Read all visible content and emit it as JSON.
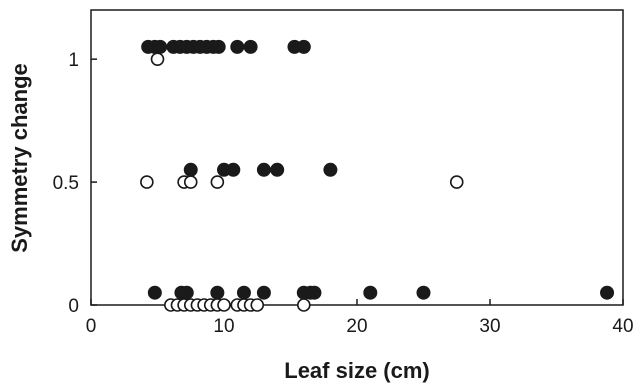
{
  "chart_data": {
    "type": "scatter",
    "xlabel": "Leaf size (cm)",
    "ylabel": "Symmetry change",
    "xlim": [
      0,
      40
    ],
    "ylim": [
      0,
      1.2
    ],
    "xticks": [
      0,
      10,
      20,
      30,
      40
    ],
    "xtick_labels": [
      "0",
      "10",
      "20",
      "30",
      "40"
    ],
    "yticks": [
      0,
      0.5,
      1
    ],
    "ytick_labels": [
      "0",
      "0.5",
      "1"
    ],
    "grid": false,
    "legend": "none",
    "series": [
      {
        "marker": "filled-circle",
        "color": "#1a1a1a",
        "points": [
          [
            4.3,
            1.05
          ],
          [
            4.8,
            1.05
          ],
          [
            5.2,
            1.05
          ],
          [
            6.2,
            1.05
          ],
          [
            6.7,
            1.05
          ],
          [
            7.2,
            1.05
          ],
          [
            7.7,
            1.05
          ],
          [
            8.2,
            1.05
          ],
          [
            8.7,
            1.05
          ],
          [
            9.2,
            1.05
          ],
          [
            9.6,
            1.05
          ],
          [
            11.0,
            1.05
          ],
          [
            12.0,
            1.05
          ],
          [
            15.3,
            1.05
          ],
          [
            16.0,
            1.05
          ],
          [
            7.5,
            0.55
          ],
          [
            10.0,
            0.55
          ],
          [
            10.7,
            0.55
          ],
          [
            13.0,
            0.55
          ],
          [
            14.0,
            0.55
          ],
          [
            18.0,
            0.55
          ],
          [
            4.8,
            0.05
          ],
          [
            6.8,
            0.05
          ],
          [
            7.2,
            0.05
          ],
          [
            9.5,
            0.05
          ],
          [
            11.5,
            0.05
          ],
          [
            13.0,
            0.05
          ],
          [
            16.0,
            0.05
          ],
          [
            16.5,
            0.05
          ],
          [
            16.8,
            0.05
          ],
          [
            21.0,
            0.05
          ],
          [
            25.0,
            0.05
          ],
          [
            38.8,
            0.05
          ]
        ]
      },
      {
        "marker": "open-circle",
        "color": "#1a1a1a",
        "points": [
          [
            5.0,
            1.0
          ],
          [
            4.2,
            0.5
          ],
          [
            7.0,
            0.5
          ],
          [
            7.5,
            0.5
          ],
          [
            9.5,
            0.5
          ],
          [
            27.5,
            0.5
          ],
          [
            6.0,
            0.0
          ],
          [
            6.5,
            0.0
          ],
          [
            7.0,
            0.0
          ],
          [
            7.5,
            0.0
          ],
          [
            8.0,
            0.0
          ],
          [
            8.5,
            0.0
          ],
          [
            9.0,
            0.0
          ],
          [
            9.5,
            0.0
          ],
          [
            10.0,
            0.0
          ],
          [
            11.0,
            0.0
          ],
          [
            11.5,
            0.0
          ],
          [
            12.0,
            0.0
          ],
          [
            12.5,
            0.0
          ],
          [
            16.0,
            0.0
          ]
        ]
      }
    ]
  }
}
